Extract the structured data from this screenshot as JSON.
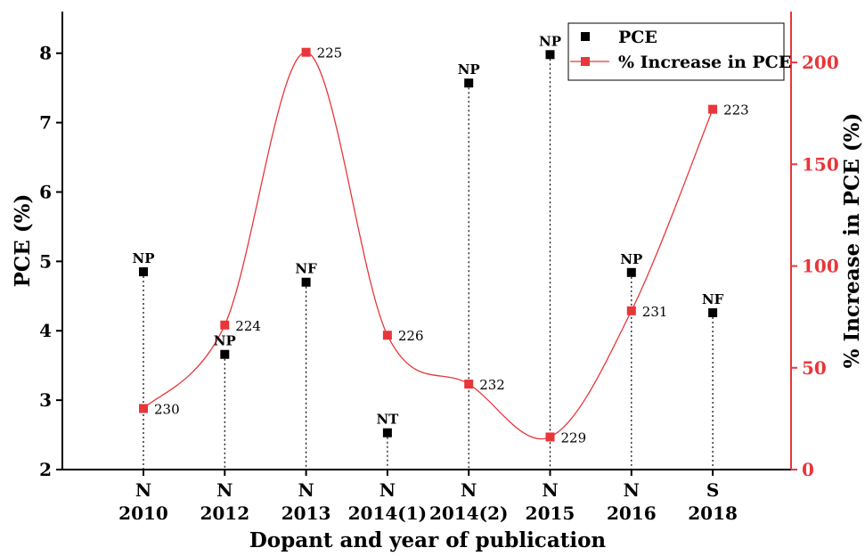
{
  "chart_data": {
    "type": "line",
    "xlabel": "Dopant and year of publication",
    "categories": [
      {
        "dopant": "N",
        "year": "2010"
      },
      {
        "dopant": "N",
        "year": "2012"
      },
      {
        "dopant": "N",
        "year": "2013"
      },
      {
        "dopant": "N",
        "year": "2014(1)"
      },
      {
        "dopant": "N",
        "year": "2014(2)"
      },
      {
        "dopant": "N",
        "year": "2015"
      },
      {
        "dopant": "N",
        "year": "2016"
      },
      {
        "dopant": "S",
        "year": "2018"
      }
    ],
    "left_axis": {
      "label": "PCE (%)",
      "ylim": [
        2,
        8.6
      ],
      "ticks": [
        2,
        3,
        4,
        5,
        6,
        7,
        8
      ],
      "color": "#000000"
    },
    "right_axis": {
      "label": "% Increase in PCE (%)",
      "ylim": [
        0,
        225
      ],
      "ticks": [
        0,
        50,
        100,
        150,
        200
      ],
      "color": "#e8363b"
    },
    "series": [
      {
        "name": "PCE",
        "axis": "left",
        "style": "scatter-square-with-droplines",
        "color": "#000000",
        "values": [
          4.85,
          3.66,
          4.7,
          2.53,
          7.57,
          7.98,
          4.84,
          4.26
        ],
        "labels": [
          "NP",
          "NP",
          "NF",
          "NT",
          "NP",
          "NP",
          "NP",
          "NF"
        ]
      },
      {
        "name": "% Increase in PCE",
        "axis": "right",
        "style": "smooth-line-with-square-markers",
        "color": "#e8363b",
        "values": [
          30,
          71,
          205,
          66,
          42,
          16,
          78,
          177
        ],
        "labels": [
          "230",
          "224",
          "225",
          "226",
          "232",
          "229",
          "231",
          "223"
        ]
      }
    ],
    "legend": {
      "placement": "top-right"
    }
  }
}
